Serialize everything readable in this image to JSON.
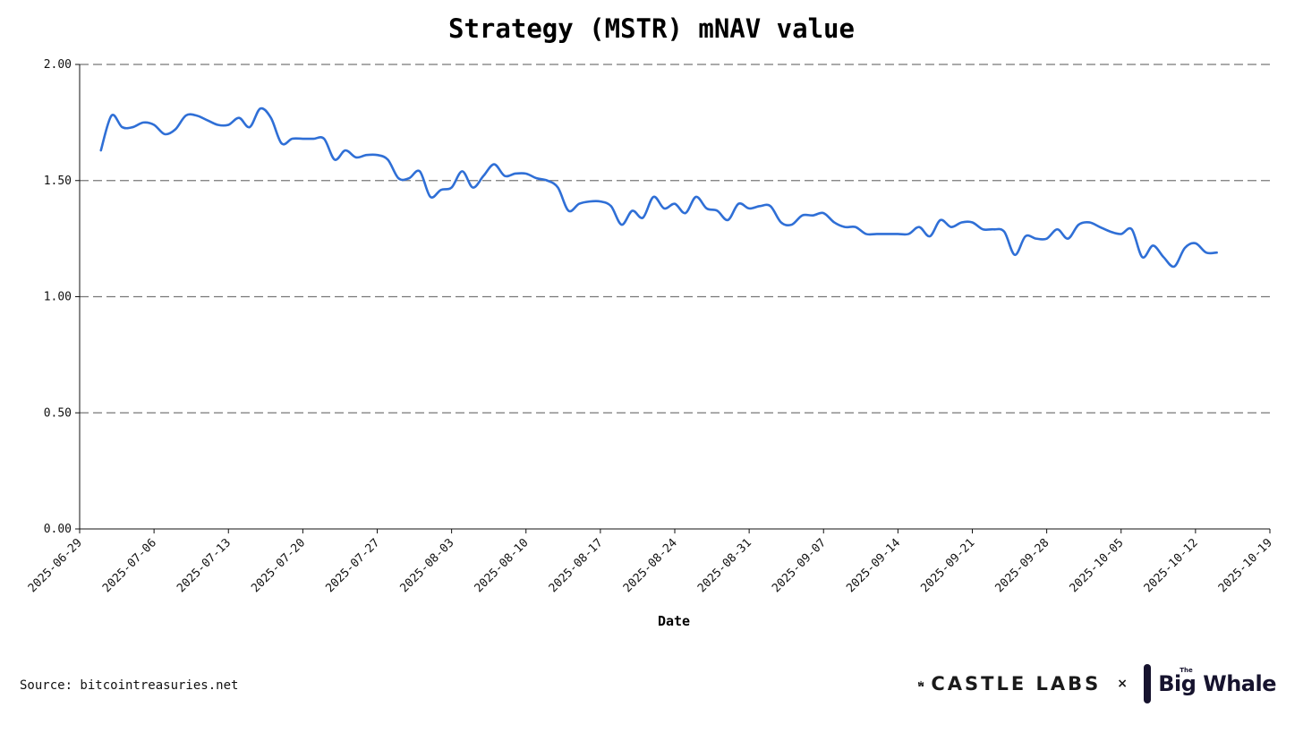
{
  "chart_data": {
    "type": "line",
    "title": "Strategy (MSTR) mNAV value",
    "xlabel": "Date",
    "ylabel": "",
    "ylim": [
      0,
      2
    ],
    "grid": "horizontal-dashed",
    "line_color": "#2f6fd6",
    "x_ticks": [
      "2025-06-29",
      "2025-07-06",
      "2025-07-13",
      "2025-07-20",
      "2025-07-27",
      "2025-08-03",
      "2025-08-10",
      "2025-08-17",
      "2025-08-24",
      "2025-08-31",
      "2025-09-07",
      "2025-09-14",
      "2025-09-21",
      "2025-09-28",
      "2025-10-05",
      "2025-10-12",
      "2025-10-19"
    ],
    "y_ticks": [
      "0.00",
      "0.50",
      "1.00",
      "1.50",
      "2.00"
    ],
    "y_tick_values": [
      0,
      0.5,
      1.0,
      1.5,
      2.0
    ],
    "x_start": "2025-06-29",
    "x_end": "2025-10-19",
    "series": [
      {
        "name": "mNAV",
        "x": [
          "2025-07-01",
          "2025-07-02",
          "2025-07-03",
          "2025-07-04",
          "2025-07-05",
          "2025-07-06",
          "2025-07-07",
          "2025-07-08",
          "2025-07-09",
          "2025-07-10",
          "2025-07-11",
          "2025-07-12",
          "2025-07-13",
          "2025-07-14",
          "2025-07-15",
          "2025-07-16",
          "2025-07-17",
          "2025-07-18",
          "2025-07-19",
          "2025-07-20",
          "2025-07-21",
          "2025-07-22",
          "2025-07-23",
          "2025-07-24",
          "2025-07-25",
          "2025-07-26",
          "2025-07-27",
          "2025-07-28",
          "2025-07-29",
          "2025-07-30",
          "2025-07-31",
          "2025-08-01",
          "2025-08-02",
          "2025-08-03",
          "2025-08-04",
          "2025-08-05",
          "2025-08-06",
          "2025-08-07",
          "2025-08-08",
          "2025-08-09",
          "2025-08-10",
          "2025-08-11",
          "2025-08-12",
          "2025-08-13",
          "2025-08-14",
          "2025-08-15",
          "2025-08-16",
          "2025-08-17",
          "2025-08-18",
          "2025-08-19",
          "2025-08-20",
          "2025-08-21",
          "2025-08-22",
          "2025-08-23",
          "2025-08-24",
          "2025-08-25",
          "2025-08-26",
          "2025-08-27",
          "2025-08-28",
          "2025-08-29",
          "2025-08-30",
          "2025-08-31",
          "2025-09-01",
          "2025-09-02",
          "2025-09-03",
          "2025-09-04",
          "2025-09-05",
          "2025-09-06",
          "2025-09-07",
          "2025-09-08",
          "2025-09-09",
          "2025-09-10",
          "2025-09-11",
          "2025-09-12",
          "2025-09-13",
          "2025-09-14",
          "2025-09-15",
          "2025-09-16",
          "2025-09-17",
          "2025-09-18",
          "2025-09-19",
          "2025-09-20",
          "2025-09-21",
          "2025-09-22",
          "2025-09-23",
          "2025-09-24",
          "2025-09-25",
          "2025-09-26",
          "2025-09-27",
          "2025-09-28",
          "2025-09-29",
          "2025-09-30",
          "2025-10-01",
          "2025-10-02",
          "2025-10-03",
          "2025-10-04",
          "2025-10-05",
          "2025-10-06",
          "2025-10-07",
          "2025-10-08",
          "2025-10-09",
          "2025-10-10",
          "2025-10-11",
          "2025-10-12",
          "2025-10-13",
          "2025-10-14"
        ],
        "values": [
          1.63,
          1.78,
          1.73,
          1.73,
          1.75,
          1.74,
          1.7,
          1.72,
          1.78,
          1.78,
          1.76,
          1.74,
          1.74,
          1.77,
          1.73,
          1.81,
          1.77,
          1.66,
          1.68,
          1.68,
          1.68,
          1.68,
          1.59,
          1.63,
          1.6,
          1.61,
          1.61,
          1.59,
          1.51,
          1.51,
          1.54,
          1.43,
          1.46,
          1.47,
          1.54,
          1.47,
          1.52,
          1.57,
          1.52,
          1.53,
          1.53,
          1.51,
          1.5,
          1.47,
          1.37,
          1.4,
          1.41,
          1.41,
          1.39,
          1.31,
          1.37,
          1.34,
          1.43,
          1.38,
          1.4,
          1.36,
          1.43,
          1.38,
          1.37,
          1.33,
          1.4,
          1.38,
          1.39,
          1.39,
          1.32,
          1.31,
          1.35,
          1.35,
          1.36,
          1.32,
          1.3,
          1.3,
          1.27,
          1.27,
          1.27,
          1.27,
          1.27,
          1.3,
          1.26,
          1.33,
          1.3,
          1.32,
          1.32,
          1.29,
          1.29,
          1.28,
          1.18,
          1.26,
          1.25,
          1.25,
          1.29,
          1.25,
          1.31,
          1.32,
          1.3,
          1.28,
          1.27,
          1.29,
          1.17,
          1.22,
          1.17,
          1.13,
          1.21,
          1.23,
          1.19,
          1.19
        ]
      }
    ]
  },
  "footer": {
    "source": "Source: bitcointreasuries.net",
    "castle_labs": "CASTLE LABS",
    "times": "×",
    "big_whale_the": "The",
    "big_whale": "Big Whale"
  }
}
